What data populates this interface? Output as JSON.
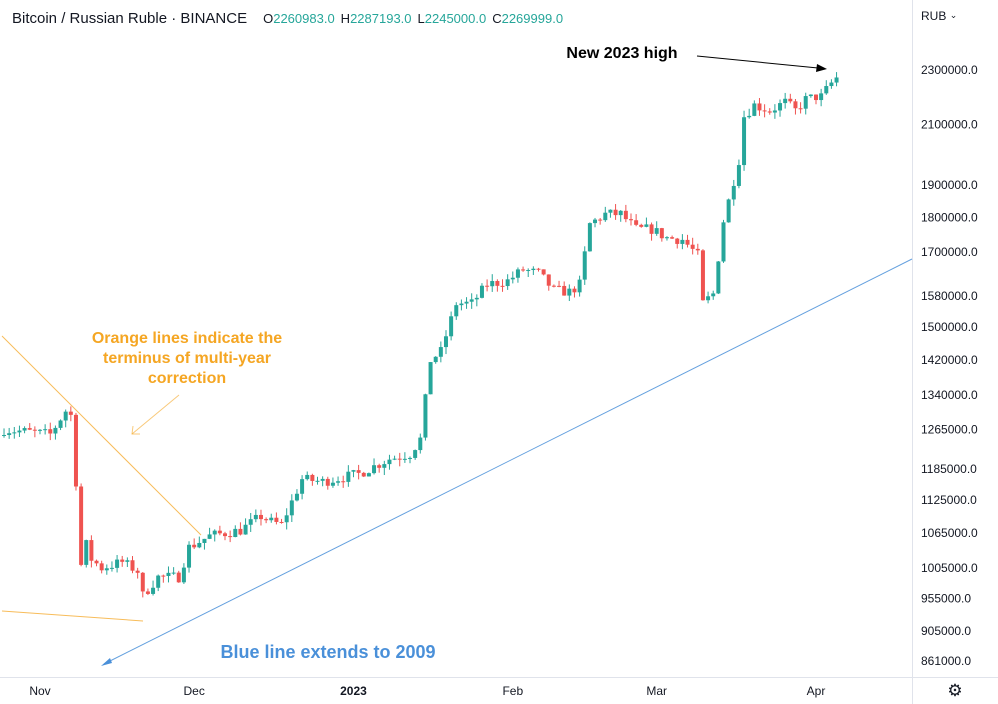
{
  "header": {
    "title": "Bitcoin / Russian Ruble · BINANCE",
    "ohlc": [
      {
        "key": "O",
        "value": "2260983.0"
      },
      {
        "key": "H",
        "value": "2287193.0"
      },
      {
        "key": "L",
        "value": "2245000.0"
      },
      {
        "key": "C",
        "value": "2269999.0"
      }
    ]
  },
  "currency_label": "RUB",
  "icons": {
    "settings": "gear-icon",
    "currency_dropdown": "chevron-down-icon"
  },
  "colors": {
    "up": "#26a69a",
    "down": "#ef5350",
    "orange": "#f5a623",
    "blue": "#4a90d9",
    "axis_text": "#131722",
    "grid": "#e0e3eb"
  },
  "chart_data": {
    "type": "candlestick",
    "title": "Bitcoin / Russian Ruble · BINANCE",
    "y_ticks": [
      2300000,
      2100000,
      1900000,
      1800000,
      1700000,
      1580000,
      1500000,
      1420000,
      1340000,
      1265000,
      1185000,
      1125000,
      1065000,
      1005000,
      955000,
      905000,
      861000
    ],
    "y_tick_labels": [
      "2300000.0",
      "2100000.0",
      "1900000.0",
      "1800000.0",
      "1700000.0",
      "1580000.0",
      "1500000.0",
      "1420000.0",
      "1340000.0",
      "1265000.0",
      "1185000.0",
      "1125000.0",
      "1065000.0",
      "1005000.0",
      "955000.0",
      "905000.0",
      "861000.0"
    ],
    "x_labels": [
      {
        "label": "Nov",
        "date": "2022-11-01"
      },
      {
        "label": "Dec",
        "date": "2022-12-01"
      },
      {
        "label": "2023",
        "date": "2023-01-01"
      },
      {
        "label": "Feb",
        "date": "2023-02-01"
      },
      {
        "label": "Mar",
        "date": "2023-03-01"
      },
      {
        "label": "Apr",
        "date": "2023-04-01"
      }
    ],
    "annotations": [
      {
        "text": "New 2023 high",
        "color": "#000000"
      },
      {
        "text": "Orange lines indicate the terminus of multi-year correction",
        "lines": [
          "Orange lines indicate the",
          "terminus of multi-year",
          "correction"
        ],
        "color": "#f5a623"
      },
      {
        "text": "Blue line extends to 2009",
        "color": "#4a90d9"
      }
    ],
    "close_path": [
      [
        "2022-10-25",
        1265000
      ],
      [
        "2022-10-30",
        1260000
      ],
      [
        "2022-11-03",
        1255000
      ],
      [
        "2022-11-06",
        1305000
      ],
      [
        "2022-11-07",
        1295000
      ],
      [
        "2022-11-08",
        1160000
      ],
      [
        "2022-11-09",
        1010000
      ],
      [
        "2022-11-10",
        1045000
      ],
      [
        "2022-11-11",
        1020000
      ],
      [
        "2022-11-13",
        1005000
      ],
      [
        "2022-11-17",
        1015000
      ],
      [
        "2022-11-20",
        1000000
      ],
      [
        "2022-11-21",
        960000
      ],
      [
        "2022-11-24",
        990000
      ],
      [
        "2022-11-28",
        990000
      ],
      [
        "2022-11-30",
        1040000
      ],
      [
        "2022-12-02",
        1050000
      ],
      [
        "2022-12-04",
        1060000
      ],
      [
        "2022-12-10",
        1070000
      ],
      [
        "2022-12-14",
        1095000
      ],
      [
        "2022-12-16",
        1085000
      ],
      [
        "2022-12-18",
        1080000
      ],
      [
        "2022-12-22",
        1165000
      ],
      [
        "2022-12-26",
        1160000
      ],
      [
        "2023-01-02",
        1175000
      ],
      [
        "2023-01-05",
        1190000
      ],
      [
        "2023-01-08",
        1205000
      ],
      [
        "2023-01-12",
        1215000
      ],
      [
        "2023-01-14",
        1245000
      ],
      [
        "2023-01-16",
        1420000
      ],
      [
        "2023-01-18",
        1440000
      ],
      [
        "2023-01-21",
        1560000
      ],
      [
        "2023-01-24",
        1560000
      ],
      [
        "2023-01-27",
        1610000
      ],
      [
        "2023-01-31",
        1620000
      ],
      [
        "2023-02-03",
        1650000
      ],
      [
        "2023-02-06",
        1640000
      ],
      [
        "2023-02-09",
        1595000
      ],
      [
        "2023-02-12",
        1590000
      ],
      [
        "2023-02-14",
        1610000
      ],
      [
        "2023-02-16",
        1780000
      ],
      [
        "2023-02-19",
        1810000
      ],
      [
        "2023-02-22",
        1810000
      ],
      [
        "2023-02-25",
        1765000
      ],
      [
        "2023-02-28",
        1765000
      ],
      [
        "2023-03-03",
        1740000
      ],
      [
        "2023-03-06",
        1735000
      ],
      [
        "2023-03-09",
        1690000
      ],
      [
        "2023-03-10",
        1560000
      ],
      [
        "2023-03-12",
        1585000
      ],
      [
        "2023-03-14",
        1790000
      ],
      [
        "2023-03-15",
        1850000
      ],
      [
        "2023-03-17",
        1980000
      ],
      [
        "2023-03-18",
        2130000
      ],
      [
        "2023-03-20",
        2170000
      ],
      [
        "2023-03-23",
        2150000
      ],
      [
        "2023-03-26",
        2180000
      ],
      [
        "2023-03-28",
        2150000
      ],
      [
        "2023-03-30",
        2190000
      ],
      [
        "2023-04-01",
        2200000
      ],
      [
        "2023-04-02",
        2200000
      ],
      [
        "2023-04-04",
        2250000
      ],
      [
        "2023-04-05",
        2270000
      ]
    ]
  }
}
